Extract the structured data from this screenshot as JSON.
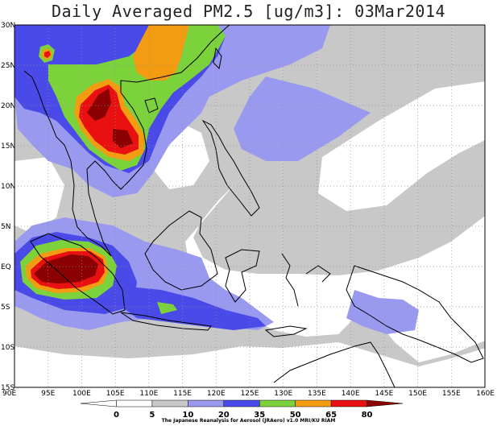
{
  "title": "Daily Averaged PM2.5 [ug/m3]: 03Mar2014",
  "credit": "The Japanese Reanalysis for Aerosol (JRAero) v1.0 MRI/KU RIAM",
  "map": {
    "lon_range": [
      90,
      160
    ],
    "lat_range": [
      -15,
      30
    ],
    "lon_ticks": [
      {
        "value": 90,
        "label": "90E"
      },
      {
        "value": 95,
        "label": "95E"
      },
      {
        "value": 100,
        "label": "100E"
      },
      {
        "value": 105,
        "label": "105E"
      },
      {
        "value": 110,
        "label": "110E"
      },
      {
        "value": 115,
        "label": "115E"
      },
      {
        "value": 120,
        "label": "120E"
      },
      {
        "value": 125,
        "label": "125E"
      },
      {
        "value": 130,
        "label": "130E"
      },
      {
        "value": 135,
        "label": "135E"
      },
      {
        "value": 140,
        "label": "140E"
      },
      {
        "value": 145,
        "label": "145E"
      },
      {
        "value": 150,
        "label": "150E"
      },
      {
        "value": 155,
        "label": "155E"
      },
      {
        "value": 160,
        "label": "160E"
      }
    ],
    "lat_ticks": [
      {
        "value": 30,
        "label": "30N"
      },
      {
        "value": 25,
        "label": "25N"
      },
      {
        "value": 20,
        "label": "20N"
      },
      {
        "value": 15,
        "label": "15N"
      },
      {
        "value": 10,
        "label": "10N"
      },
      {
        "value": 5,
        "label": "5N"
      },
      {
        "value": 0,
        "label": "EQ"
      },
      {
        "value": -5,
        "label": "5S"
      },
      {
        "value": -10,
        "label": "10S"
      },
      {
        "value": -15,
        "label": "15S"
      }
    ],
    "grid": "dotted"
  },
  "colorbar": {
    "levels": [
      {
        "label": "0",
        "color": "#ffffff"
      },
      {
        "label": "5",
        "color": "#ffffff"
      },
      {
        "label": "10",
        "color": "#c8c8c8"
      },
      {
        "label": "20",
        "color": "#9999f0"
      },
      {
        "label": "35",
        "color": "#4a4ae8"
      },
      {
        "label": "50",
        "color": "#7cd23a"
      },
      {
        "label": "65",
        "color": "#f39c12"
      },
      {
        "label": "80",
        "color": "#e81010"
      }
    ],
    "colors": [
      "#ffffff",
      "#ffffff",
      "#c8c8c8",
      "#9999f0",
      "#4a4ae8",
      "#7cd23a",
      "#f39c12",
      "#e81010",
      "#8b0000"
    ]
  }
}
